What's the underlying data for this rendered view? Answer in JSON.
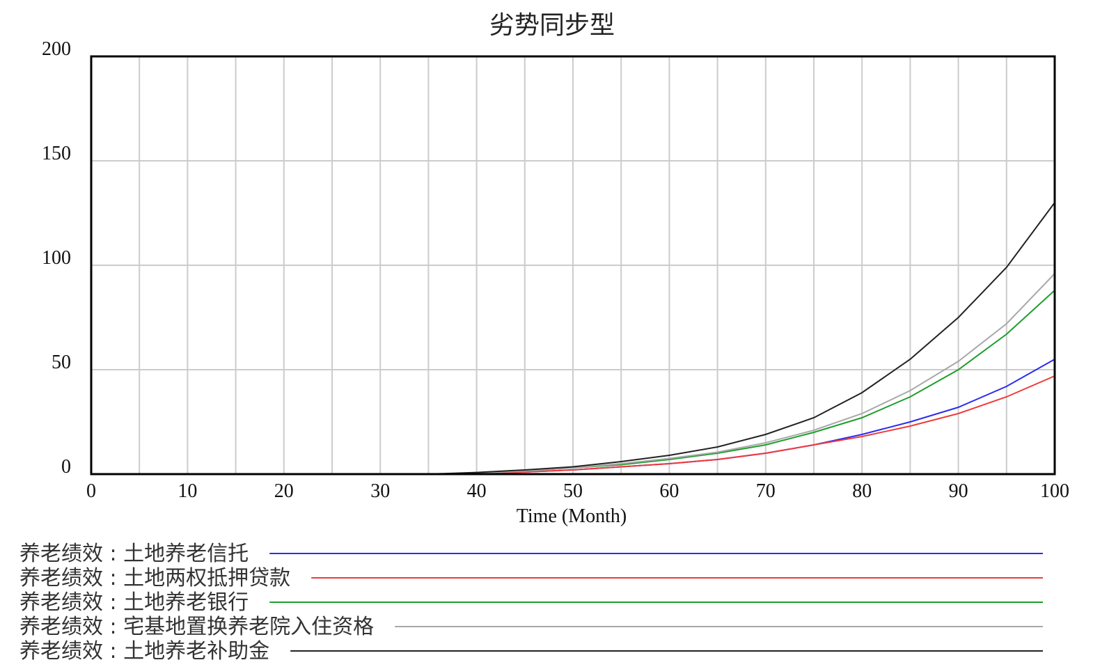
{
  "chart_data": {
    "type": "line",
    "title": "劣势同步型",
    "xlabel": "Time (Month)",
    "ylabel": "",
    "xlim": [
      0,
      100
    ],
    "ylim": [
      0,
      200
    ],
    "x_ticks": [
      "0",
      "10",
      "20",
      "30",
      "40",
      "50",
      "60",
      "70",
      "80",
      "90",
      "100"
    ],
    "y_ticks": [
      "0",
      "50",
      "100",
      "150",
      "200"
    ],
    "grid": true,
    "legend_position": "bottom",
    "x": [
      0,
      10,
      20,
      30,
      35,
      40,
      45,
      50,
      55,
      60,
      65,
      70,
      75,
      80,
      85,
      90,
      95,
      100
    ],
    "series": [
      {
        "name": "养老绩效 : 土地养老信托",
        "color": "#2b2bf0",
        "values": [
          0,
          0,
          0,
          0,
          0,
          0.5,
          1,
          2,
          3.5,
          5,
          7,
          10,
          14,
          19,
          25,
          32,
          42,
          55
        ]
      },
      {
        "name": "养老绩效 : 土地两权抵押贷款",
        "color": "#f03a3a",
        "values": [
          0,
          0,
          0,
          0,
          0,
          0.5,
          1,
          2,
          3.5,
          5,
          7,
          10,
          14,
          18,
          23,
          29,
          37,
          47
        ]
      },
      {
        "name": "养老绩效 : 土地养老银行",
        "color": "#1e9e2a",
        "values": [
          0,
          0,
          0,
          0,
          0,
          0.5,
          1.5,
          3,
          4.5,
          7,
          10,
          14,
          20,
          27,
          37,
          50,
          67,
          88
        ]
      },
      {
        "name": "养老绩效 : 宅基地置换养老院入住资格",
        "color": "#a9a9a9",
        "values": [
          0,
          0,
          0,
          0,
          0,
          0.5,
          1.5,
          3,
          5,
          7.5,
          10.5,
          15,
          21,
          29,
          40,
          54,
          72,
          96
        ]
      },
      {
        "name": "养老绩效 : 土地养老补助金",
        "color": "#222222",
        "values": [
          0,
          0,
          0,
          0,
          0,
          0.8,
          2,
          3.5,
          6,
          9,
          13,
          19,
          27,
          39,
          55,
          75,
          99,
          130
        ]
      }
    ]
  }
}
